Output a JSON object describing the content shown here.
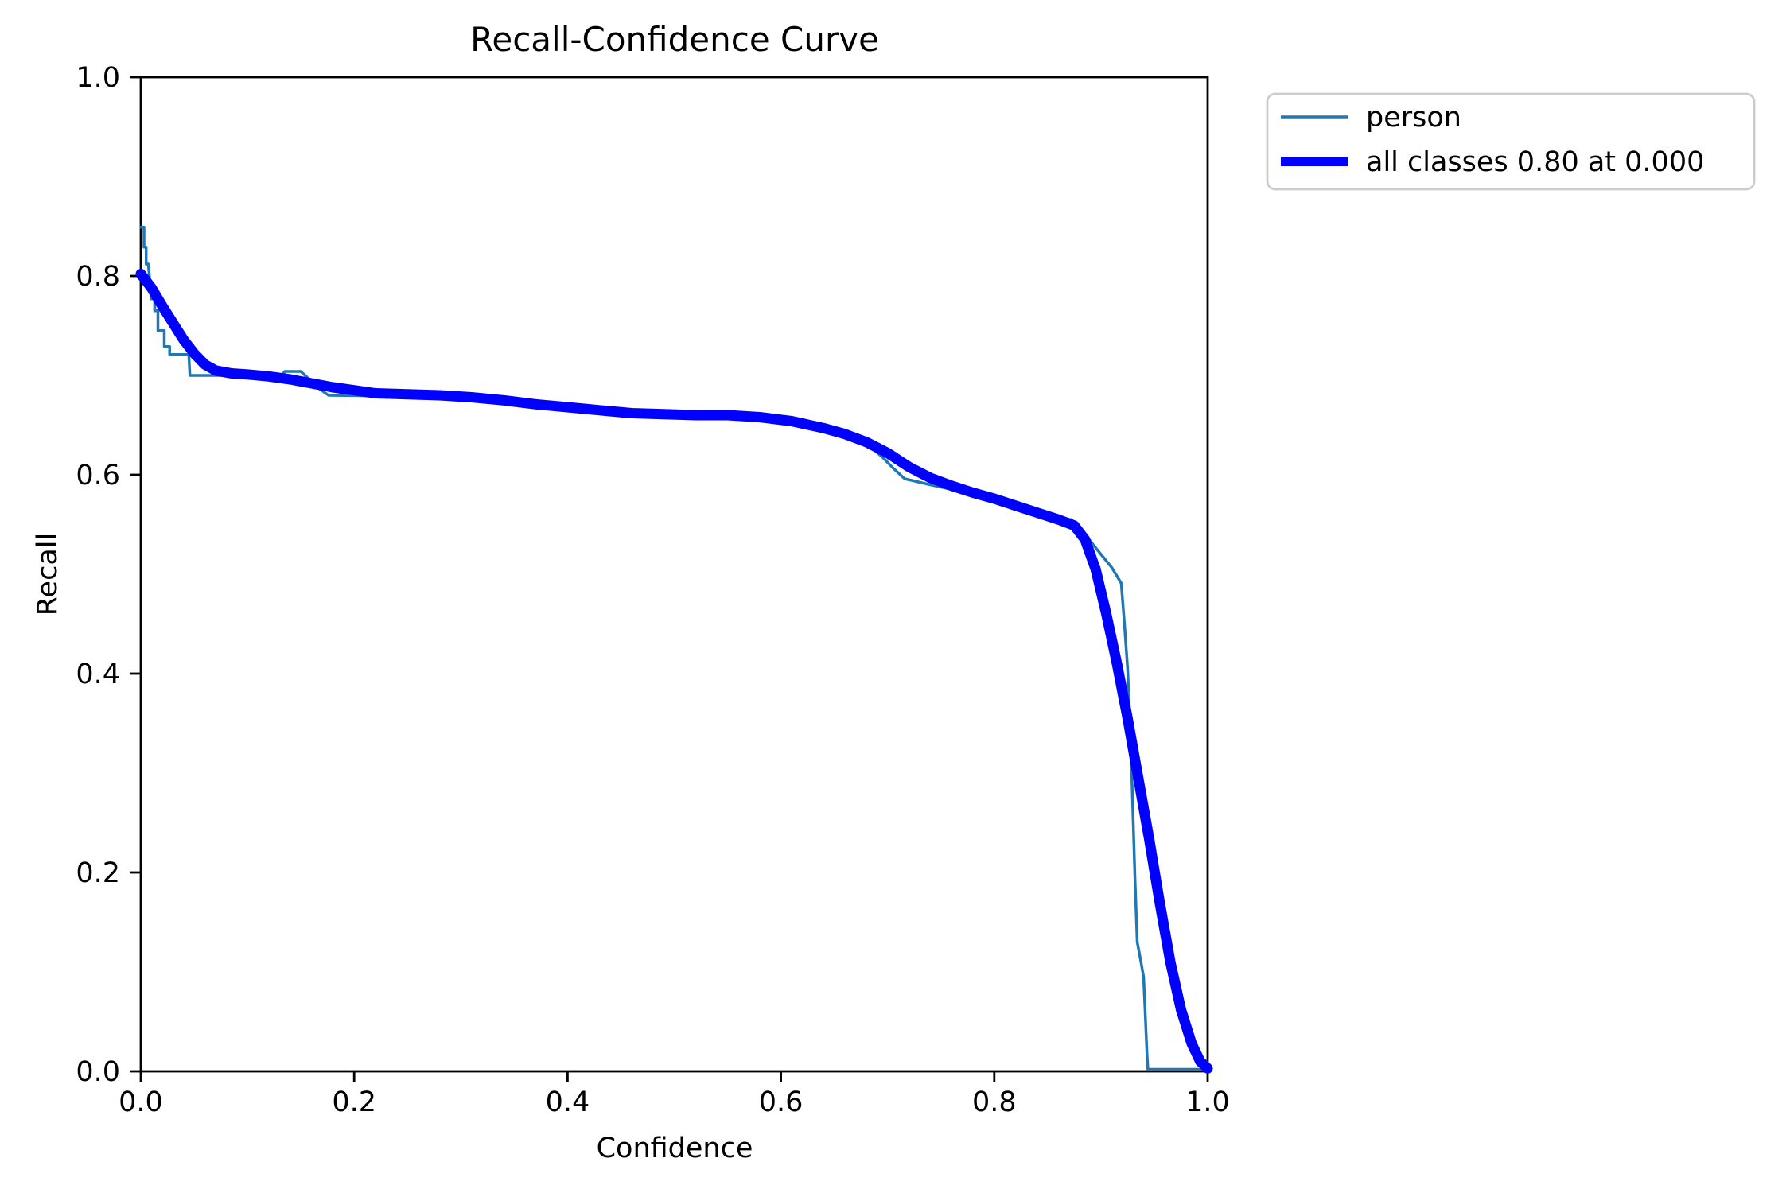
{
  "chart_data": {
    "type": "line",
    "title": "Recall-Confidence Curve",
    "xlabel": "Confidence",
    "ylabel": "Recall",
    "xlim": [
      0.0,
      1.0
    ],
    "ylim": [
      0.0,
      1.0
    ],
    "x_ticks": [
      "0.0",
      "0.2",
      "0.4",
      "0.6",
      "0.8",
      "1.0"
    ],
    "y_ticks": [
      "0.0",
      "0.2",
      "0.4",
      "0.6",
      "0.8",
      "1.0"
    ],
    "grid": "off",
    "legend_position": "outside-upper-right",
    "background_color": "#ffffff",
    "axes_color": "#000000",
    "legend_border_color": "#cccccc",
    "series": [
      {
        "name": "person",
        "color": "#1f77b4",
        "linewidth": 3.5,
        "style": "stepped",
        "points": [
          [
            0.0,
            0.849
          ],
          [
            0.003,
            0.849
          ],
          [
            0.003,
            0.829
          ],
          [
            0.005,
            0.829
          ],
          [
            0.005,
            0.812
          ],
          [
            0.007,
            0.812
          ],
          [
            0.01,
            0.777
          ],
          [
            0.013,
            0.777
          ],
          [
            0.013,
            0.765
          ],
          [
            0.016,
            0.765
          ],
          [
            0.016,
            0.745
          ],
          [
            0.022,
            0.745
          ],
          [
            0.022,
            0.729
          ],
          [
            0.027,
            0.729
          ],
          [
            0.027,
            0.721
          ],
          [
            0.045,
            0.721
          ],
          [
            0.046,
            0.7
          ],
          [
            0.132,
            0.7
          ],
          [
            0.135,
            0.704
          ],
          [
            0.15,
            0.704
          ],
          [
            0.168,
            0.686
          ],
          [
            0.176,
            0.68
          ],
          [
            0.25,
            0.679
          ],
          [
            0.3,
            0.678
          ],
          [
            0.35,
            0.673
          ],
          [
            0.4,
            0.668
          ],
          [
            0.45,
            0.663
          ],
          [
            0.5,
            0.661
          ],
          [
            0.55,
            0.659
          ],
          [
            0.6,
            0.654
          ],
          [
            0.63,
            0.649
          ],
          [
            0.66,
            0.643
          ],
          [
            0.68,
            0.632
          ],
          [
            0.695,
            0.618
          ],
          [
            0.705,
            0.607
          ],
          [
            0.712,
            0.6
          ],
          [
            0.716,
            0.596
          ],
          [
            0.74,
            0.59
          ],
          [
            0.77,
            0.583
          ],
          [
            0.8,
            0.576
          ],
          [
            0.83,
            0.565
          ],
          [
            0.855,
            0.556
          ],
          [
            0.872,
            0.555
          ],
          [
            0.885,
            0.54
          ],
          [
            0.9,
            0.52
          ],
          [
            0.91,
            0.507
          ],
          [
            0.919,
            0.491
          ],
          [
            0.922,
            0.45
          ],
          [
            0.925,
            0.405
          ],
          [
            0.928,
            0.33
          ],
          [
            0.93,
            0.26
          ],
          [
            0.932,
            0.19
          ],
          [
            0.934,
            0.13
          ],
          [
            0.937,
            0.113
          ],
          [
            0.94,
            0.095
          ],
          [
            0.941,
            0.07
          ],
          [
            0.943,
            0.02
          ],
          [
            0.944,
            0.002
          ],
          [
            1.0,
            0.002
          ]
        ]
      },
      {
        "name": "all classes 0.80 at 0.000",
        "color": "#0000ff",
        "linewidth": 13,
        "style": "smooth",
        "points": [
          [
            0.0,
            0.802
          ],
          [
            0.01,
            0.788
          ],
          [
            0.02,
            0.77
          ],
          [
            0.03,
            0.753
          ],
          [
            0.04,
            0.736
          ],
          [
            0.05,
            0.722
          ],
          [
            0.06,
            0.711
          ],
          [
            0.07,
            0.705
          ],
          [
            0.085,
            0.702
          ],
          [
            0.1,
            0.701
          ],
          [
            0.12,
            0.699
          ],
          [
            0.14,
            0.696
          ],
          [
            0.16,
            0.692
          ],
          [
            0.18,
            0.688
          ],
          [
            0.2,
            0.685
          ],
          [
            0.22,
            0.682
          ],
          [
            0.25,
            0.681
          ],
          [
            0.28,
            0.68
          ],
          [
            0.31,
            0.678
          ],
          [
            0.34,
            0.675
          ],
          [
            0.37,
            0.671
          ],
          [
            0.4,
            0.668
          ],
          [
            0.43,
            0.665
          ],
          [
            0.46,
            0.662
          ],
          [
            0.49,
            0.661
          ],
          [
            0.52,
            0.66
          ],
          [
            0.55,
            0.66
          ],
          [
            0.58,
            0.658
          ],
          [
            0.61,
            0.654
          ],
          [
            0.64,
            0.647
          ],
          [
            0.66,
            0.641
          ],
          [
            0.68,
            0.633
          ],
          [
            0.7,
            0.622
          ],
          [
            0.72,
            0.608
          ],
          [
            0.74,
            0.597
          ],
          [
            0.76,
            0.589
          ],
          [
            0.78,
            0.582
          ],
          [
            0.8,
            0.576
          ],
          [
            0.82,
            0.569
          ],
          [
            0.84,
            0.562
          ],
          [
            0.86,
            0.555
          ],
          [
            0.875,
            0.549
          ],
          [
            0.885,
            0.535
          ],
          [
            0.895,
            0.505
          ],
          [
            0.905,
            0.46
          ],
          [
            0.915,
            0.41
          ],
          [
            0.925,
            0.355
          ],
          [
            0.935,
            0.295
          ],
          [
            0.945,
            0.235
          ],
          [
            0.955,
            0.17
          ],
          [
            0.965,
            0.11
          ],
          [
            0.975,
            0.062
          ],
          [
            0.985,
            0.028
          ],
          [
            0.993,
            0.01
          ],
          [
            1.0,
            0.003
          ]
        ]
      }
    ]
  }
}
